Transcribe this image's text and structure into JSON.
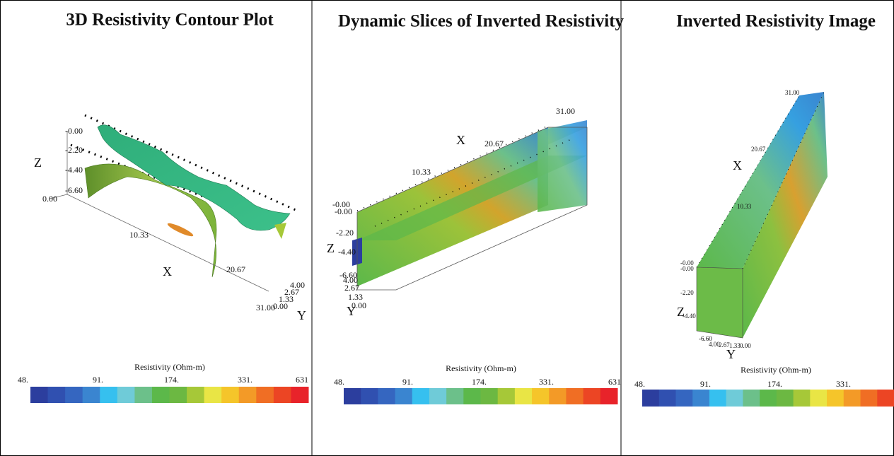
{
  "panels": [
    {
      "title": "3D Resistivity Contour Plot",
      "z_axis": {
        "label": "Z",
        "ticks": [
          "-0.00",
          "-2.20",
          "-4.40",
          "-6.60"
        ]
      },
      "x_axis": {
        "label": "X",
        "ticks": [
          "0.00",
          "10.33",
          "20.67",
          "31.00"
        ]
      },
      "y_axis": {
        "label": "Y",
        "ticks": [
          "4.00",
          "2.67",
          "1.33",
          "0.00"
        ]
      },
      "colorbar": {
        "title": "Resistivity (Ohm-m)",
        "labels": [
          "48.",
          "91.",
          "174.",
          "331.",
          "631"
        ]
      }
    },
    {
      "title": "Dynamic Slices of Inverted Resistivity",
      "z_axis": {
        "label": "Z",
        "ticks": [
          "-0.00",
          "-2.20",
          "-4.40",
          "-6.60"
        ]
      },
      "x_axis": {
        "label": "X",
        "ticks": [
          "-0.00",
          "10.33",
          "20.67",
          "31.00"
        ]
      },
      "y_axis": {
        "label": "Y",
        "ticks": [
          "4.00",
          "2.67",
          "1.33",
          "0.00"
        ]
      },
      "colorbar": {
        "title": "Resistivity (Ohm-m)",
        "labels": [
          "48.",
          "91.",
          "174.",
          "331.",
          "631"
        ]
      }
    },
    {
      "title": "Inverted Resistivity Image",
      "z_axis": {
        "label": "Z",
        "ticks": [
          "-0.00",
          "-2.20",
          "-4.40",
          "-6.60"
        ]
      },
      "x_axis": {
        "label": "X",
        "ticks": [
          "-0.00",
          "10.33",
          "20.67",
          "31.00"
        ]
      },
      "y_axis": {
        "label": "Y",
        "ticks": [
          "4.00",
          "2.67",
          "1.33",
          "0.00"
        ]
      },
      "colorbar": {
        "title": "Resistivity (Ohm-m)",
        "labels": [
          "48.",
          "91.",
          "174.",
          "331."
        ]
      }
    }
  ]
}
